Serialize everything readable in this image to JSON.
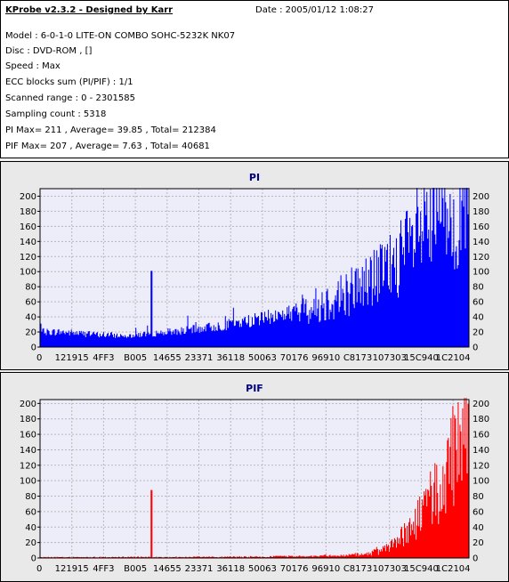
{
  "info": {
    "app_title": "KProbe v2.3.2 - Designed by Karr",
    "date": "Date : 2005/01/12 1:08:27",
    "lines": [
      "Model : 6-0-1-0 LITE-ON COMBO SOHC-5232K NK07",
      "Disc : DVD-ROM ,  []",
      "Speed : Max",
      "ECC blocks sum (PI/PIF) : 1/1",
      "Scanned range : 0 - 2301585",
      "Sampling count : 5318",
      "PI Max= 211 , Average= 39.85 , Total= 212384",
      "PIF Max= 207 , Average= 7.63 , Total= 40681"
    ]
  },
  "chart_data": [
    {
      "type": "bar",
      "title": "PI",
      "color": "#0000ff",
      "background": "#ededf9",
      "ylim": [
        0,
        210
      ],
      "yticks": [
        0,
        20,
        40,
        60,
        80,
        100,
        120,
        140,
        160,
        180,
        200
      ],
      "xticks": [
        "0",
        "121915",
        "4FF3",
        "B005",
        "14655",
        "23371",
        "36118",
        "50063",
        "70176",
        "96910",
        "C8173",
        "107303",
        "15C940",
        "1C2104"
      ],
      "grid": true,
      "profile": [
        [
          0,
          20
        ],
        [
          0.05,
          20
        ],
        [
          0.12,
          17
        ],
        [
          0.2,
          15
        ],
        [
          0.26,
          18
        ],
        [
          0.34,
          22
        ],
        [
          0.42,
          28
        ],
        [
          0.5,
          36
        ],
        [
          0.58,
          45
        ],
        [
          0.66,
          58
        ],
        [
          0.74,
          80
        ],
        [
          0.8,
          100
        ],
        [
          0.86,
          130
        ],
        [
          0.9,
          155
        ],
        [
          0.94,
          175
        ],
        [
          0.97,
          185
        ],
        [
          1.0,
          195
        ]
      ],
      "spikes": [
        {
          "at": 0.26,
          "value": 101
        }
      ],
      "max": 211
    },
    {
      "type": "bar",
      "title": "PIF",
      "color": "#ff0000",
      "background": "#ededf9",
      "ylim": [
        0,
        205
      ],
      "yticks": [
        0,
        20,
        40,
        60,
        80,
        100,
        120,
        140,
        160,
        180,
        200
      ],
      "xticks": [
        "0",
        "121915",
        "4FF3",
        "B005",
        "14655",
        "23371",
        "36118",
        "50063",
        "70176",
        "96910",
        "C8173",
        "107303",
        "15C940",
        "1C2104"
      ],
      "grid": true,
      "profile": [
        [
          0,
          1
        ],
        [
          0.5,
          1.5
        ],
        [
          0.7,
          3
        ],
        [
          0.76,
          5
        ],
        [
          0.8,
          10
        ],
        [
          0.84,
          25
        ],
        [
          0.88,
          50
        ],
        [
          0.92,
          80
        ],
        [
          0.95,
          110
        ],
        [
          0.98,
          140
        ],
        [
          1.0,
          150
        ]
      ],
      "spikes": [
        {
          "at": 0.26,
          "value": 88
        }
      ],
      "max": 207
    }
  ]
}
